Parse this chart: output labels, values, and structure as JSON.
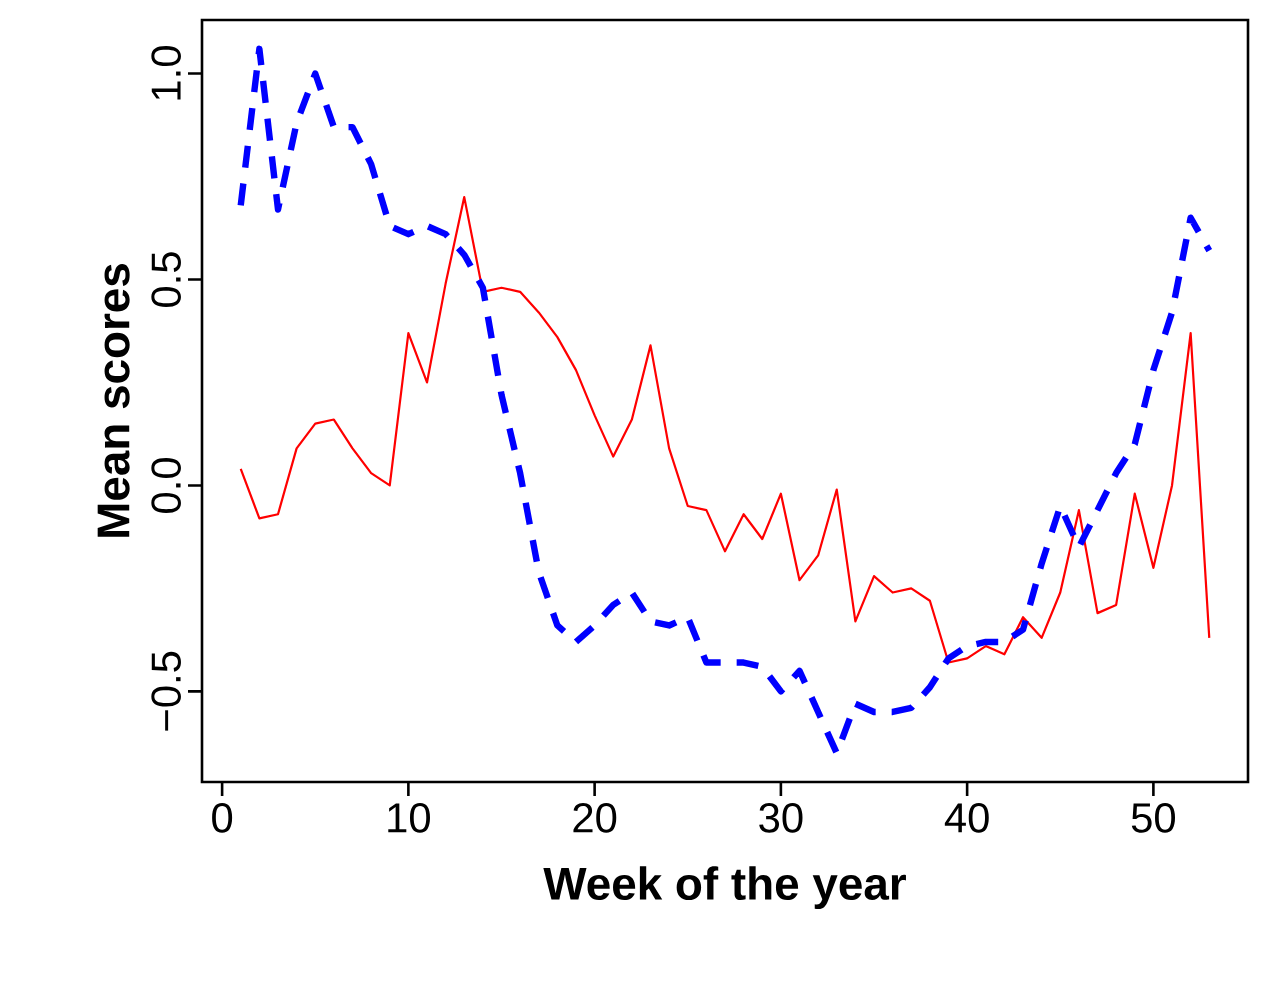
{
  "chart_data": {
    "type": "line",
    "xlabel": "Week of the year",
    "ylabel": "Mean scores",
    "x": [
      1,
      2,
      3,
      4,
      5,
      6,
      7,
      8,
      9,
      10,
      11,
      12,
      13,
      14,
      15,
      16,
      17,
      18,
      19,
      20,
      21,
      22,
      23,
      24,
      25,
      26,
      27,
      28,
      29,
      30,
      31,
      32,
      33,
      34,
      35,
      36,
      37,
      38,
      39,
      40,
      41,
      42,
      43,
      44,
      45,
      46,
      47,
      48,
      49,
      50,
      51,
      52,
      53
    ],
    "series": [
      {
        "color": "#ff0000",
        "line_style": "solid",
        "values": [
          0.04,
          -0.08,
          -0.07,
          0.09,
          0.15,
          0.16,
          0.09,
          0.03,
          0.0,
          0.37,
          0.25,
          0.49,
          0.7,
          0.47,
          0.48,
          0.47,
          0.42,
          0.36,
          0.28,
          0.17,
          0.07,
          0.16,
          0.34,
          0.09,
          -0.05,
          -0.06,
          -0.16,
          -0.07,
          -0.13,
          -0.02,
          -0.23,
          -0.17,
          -0.01,
          -0.33,
          -0.22,
          -0.26,
          -0.25,
          -0.28,
          -0.43,
          -0.42,
          -0.39,
          -0.41,
          -0.32,
          -0.37,
          -0.26,
          -0.06,
          -0.31,
          -0.29,
          -0.02,
          -0.2,
          0.0,
          0.37,
          -0.37
        ]
      },
      {
        "color": "#0000ff",
        "line_style": "dashed",
        "values": [
          0.68,
          1.06,
          0.67,
          0.88,
          1.0,
          0.87,
          0.87,
          0.78,
          0.63,
          0.61,
          0.63,
          0.61,
          0.56,
          0.48,
          0.22,
          0.03,
          -0.21,
          -0.34,
          -0.38,
          -0.34,
          -0.29,
          -0.26,
          -0.33,
          -0.34,
          -0.32,
          -0.43,
          -0.43,
          -0.43,
          -0.44,
          -0.5,
          -0.45,
          -0.55,
          -0.65,
          -0.53,
          -0.55,
          -0.55,
          -0.54,
          -0.49,
          -0.42,
          -0.39,
          -0.38,
          -0.38,
          -0.35,
          -0.19,
          -0.05,
          -0.15,
          -0.06,
          0.03,
          0.1,
          0.28,
          0.42,
          0.65,
          0.57
        ]
      }
    ],
    "xlim": [
      -1.08,
      55.08
    ],
    "ylim": [
      -0.72,
      1.13
    ],
    "xticks": [
      0,
      10,
      20,
      30,
      40,
      50
    ],
    "yticks": [
      {
        "value": -0.5,
        "label": "−0.5"
      },
      {
        "value": 0,
        "label": "0.0"
      },
      {
        "value": 0.5,
        "label": "0.5"
      },
      {
        "value": 1.0,
        "label": "1.0"
      }
    ]
  }
}
